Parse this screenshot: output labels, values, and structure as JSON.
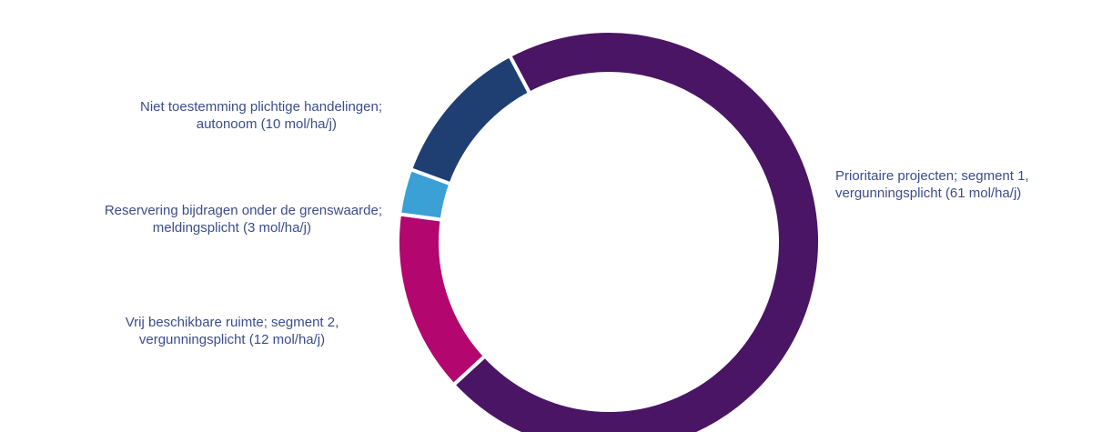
{
  "chart_data": {
    "type": "pie",
    "donut": true,
    "slices": [
      {
        "key": "prioritaire",
        "value": 61,
        "color": "#4a1564",
        "label": [
          "Prioritaire projecten; segment 1,",
          "vergunningsplicht (61 mol/ha/j)"
        ]
      },
      {
        "key": "vrij",
        "value": 12,
        "color": "#b3066f",
        "label": [
          "Vrij beschikbare ruimte; segment 2,",
          "vergunningsplicht (12 mol/ha/j)"
        ]
      },
      {
        "key": "reservering",
        "value": 3,
        "color": "#3aa0d6",
        "label": [
          "Reservering bijdragen onder de grenswaarde;",
          "meldingsplicht (3 mol/ha/j)"
        ]
      },
      {
        "key": "niet",
        "value": 10,
        "color": "#1f3f73",
        "label": [
          "Niet toestemming plichtige handelingen;",
          "autonoom (10 mol/ha/j)"
        ]
      }
    ]
  }
}
